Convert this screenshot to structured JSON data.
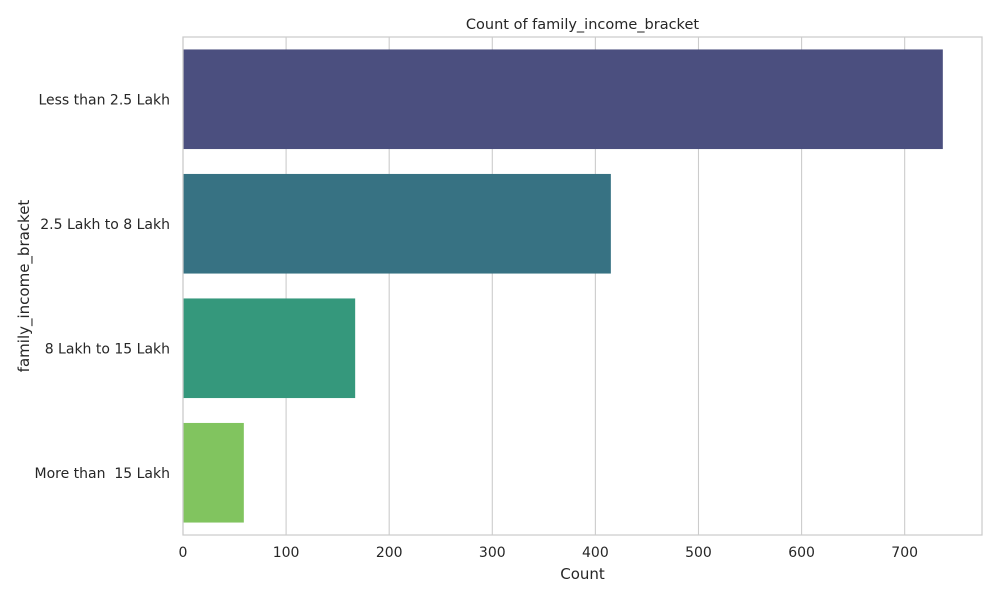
{
  "chart_data": {
    "type": "bar",
    "orientation": "horizontal",
    "title": "Count of family_income_bracket",
    "xlabel": "Count",
    "ylabel": "family_income_bracket",
    "categories": [
      "Less than 2.5 Lakh",
      "2.5 Lakh to 8 Lakh",
      "8 Lakh to 15 Lakh",
      "More than  15 Lakh"
    ],
    "values": [
      737,
      415,
      167,
      59
    ],
    "colors": [
      "#482878",
      "#26828e",
      "#1fa187",
      "#6ece58"
    ],
    "bar_colors": [
      "#4b4f7f",
      "#377283",
      "#35987c",
      "#81c45f"
    ],
    "xlim": [
      0,
      775
    ],
    "xticks": [
      0,
      100,
      200,
      300,
      400,
      500,
      600,
      700
    ],
    "xtick_labels": [
      "0",
      "100",
      "200",
      "300",
      "400",
      "500",
      "600",
      "700"
    ],
    "grid": true,
    "style": "seaborn-whitegrid"
  }
}
